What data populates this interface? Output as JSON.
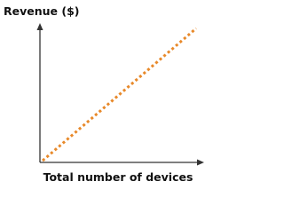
{
  "axes": {
    "y_label": "Revenue ($)",
    "x_label": "Total number of devices"
  }
}
